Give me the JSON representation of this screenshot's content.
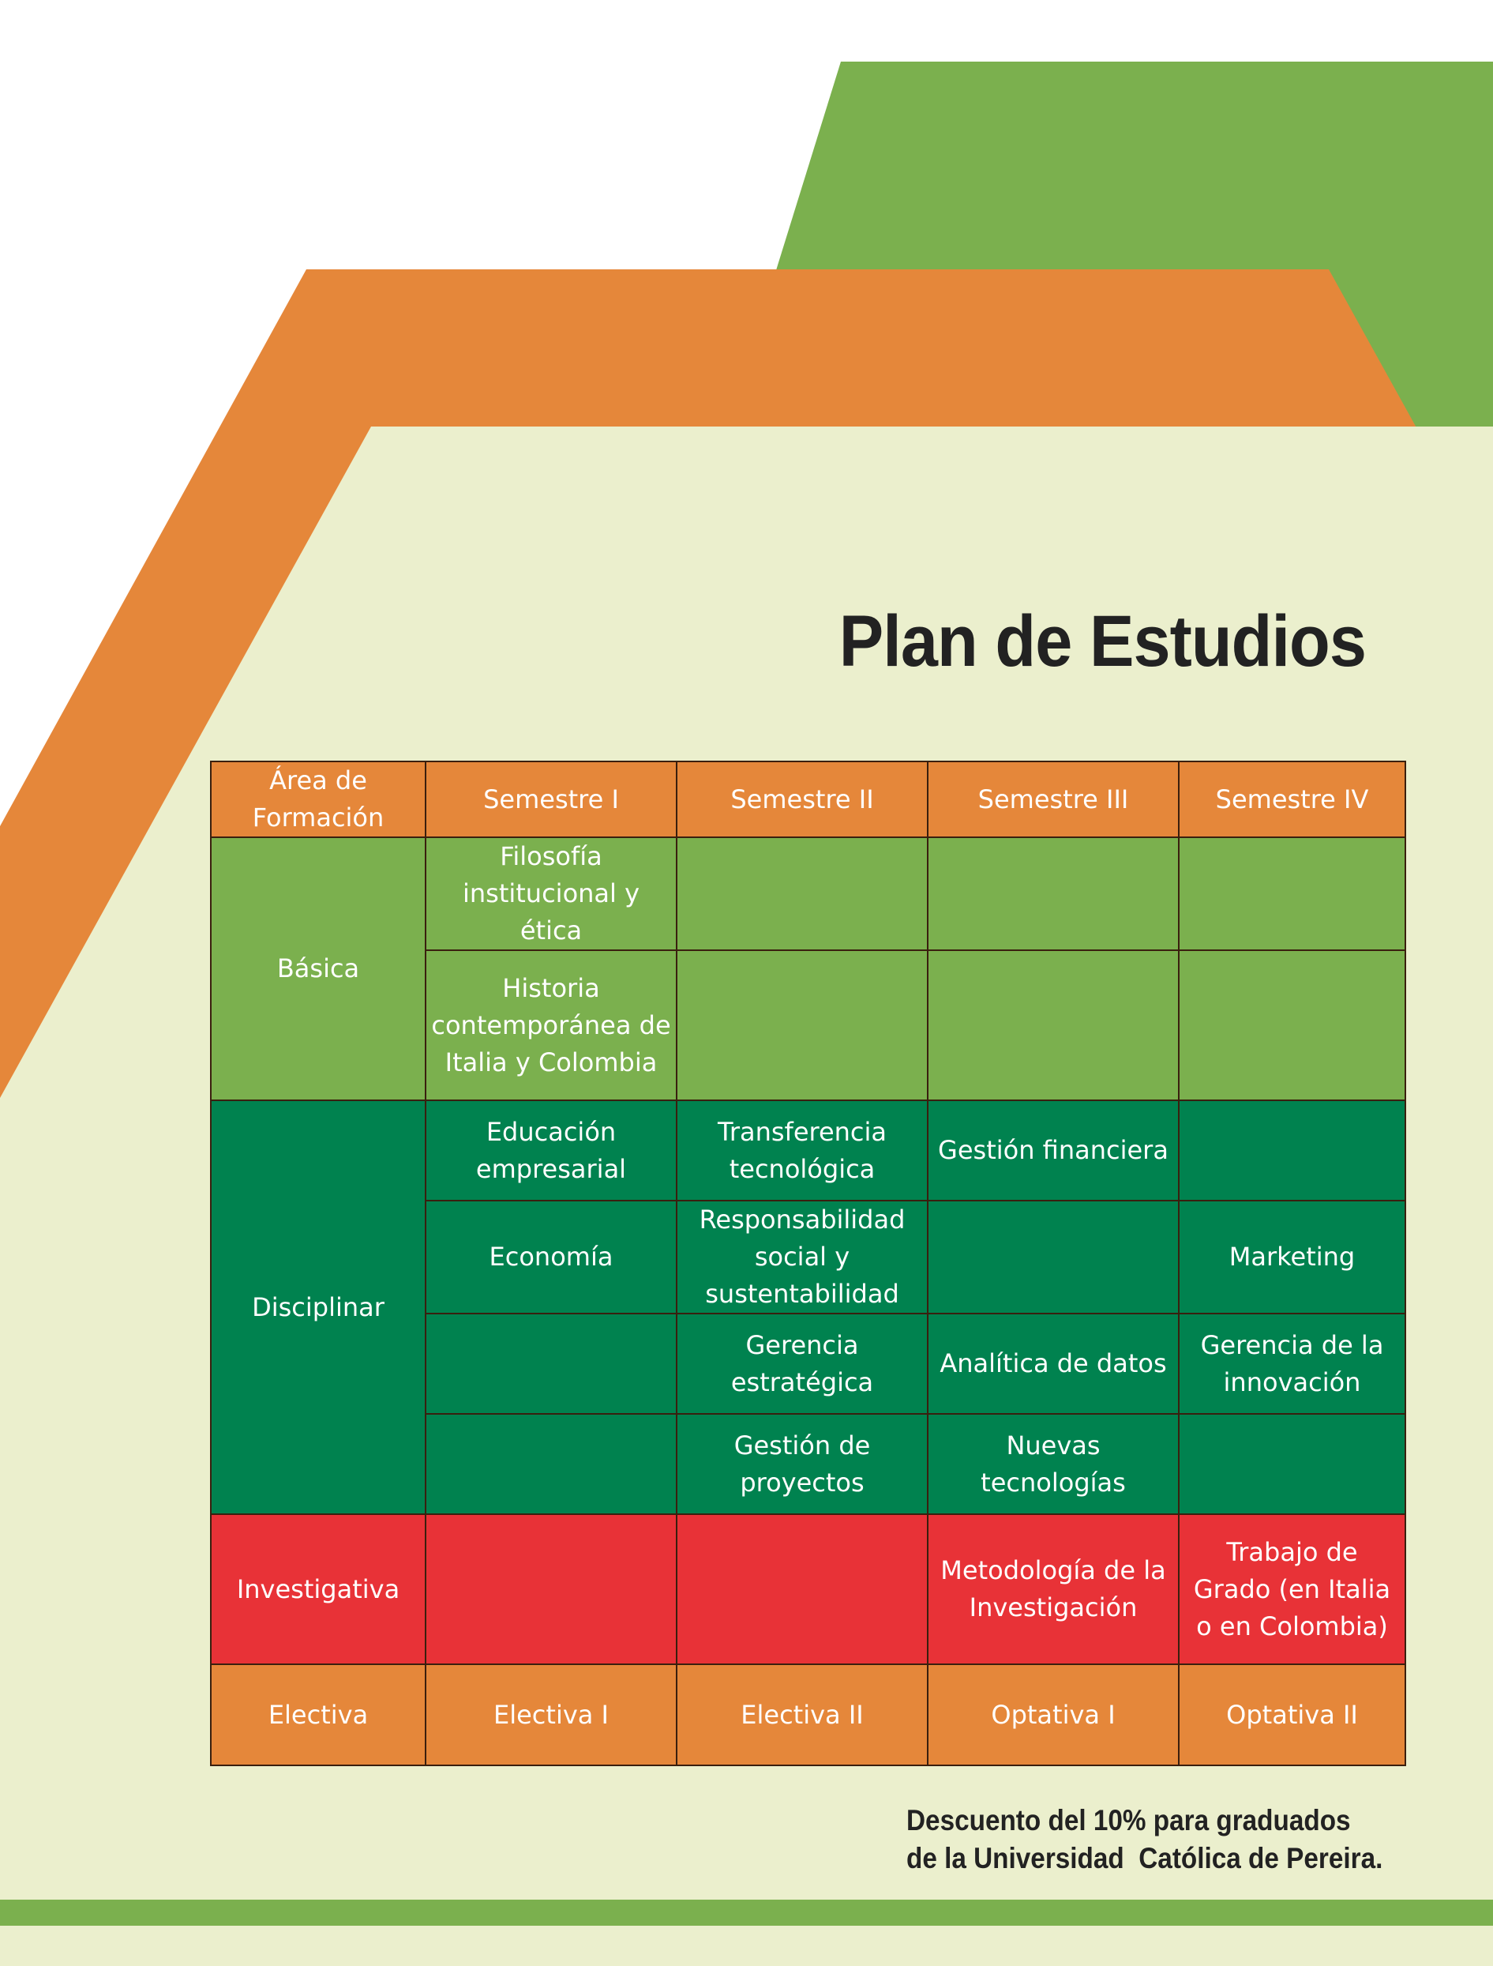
{
  "page": {
    "title": "Plan de Estudios"
  },
  "colors": {
    "green": "#7BB04E",
    "orange": "#E5873A",
    "cream": "#EBEFCD",
    "dark_green": "#00824F",
    "red": "#E83237"
  },
  "table": {
    "headers": [
      "Área de Formación",
      "Semestre I",
      "Semestre II",
      "Semestre III",
      "Semestre IV"
    ],
    "basica": {
      "label": "Básica",
      "rows": [
        [
          "Filosofía institucional y ética",
          "",
          "",
          ""
        ],
        [
          "Historia contemporánea de Italia y Colombia",
          "",
          "",
          ""
        ]
      ]
    },
    "disciplinar": {
      "label": "Disciplinar",
      "rows": [
        [
          "Educación empresarial",
          "Transferencia tecnológica",
          "Gestión financiera",
          ""
        ],
        [
          "Economía",
          "Responsabilidad social y sustentabilidad",
          "",
          "Marketing"
        ],
        [
          "",
          "Gerencia estratégica",
          "Analítica de datos",
          "Gerencia de la innovación"
        ],
        [
          "",
          "Gestión de proyectos",
          "Nuevas tecnologías",
          ""
        ]
      ]
    },
    "investigativa": {
      "label": "Investigativa",
      "cells": [
        "",
        "",
        "Metodología de la Investigación",
        "Trabajo de Grado (en Italia o en Colombia)"
      ]
    },
    "electiva": {
      "label": "Electiva",
      "cells": [
        "Electiva I",
        "Electiva II",
        "Optativa I",
        "Optativa II"
      ]
    }
  },
  "footer": {
    "line1": "Descuento del 10% para graduados",
    "line2": "de la Universidad  Católica de Pereira."
  }
}
